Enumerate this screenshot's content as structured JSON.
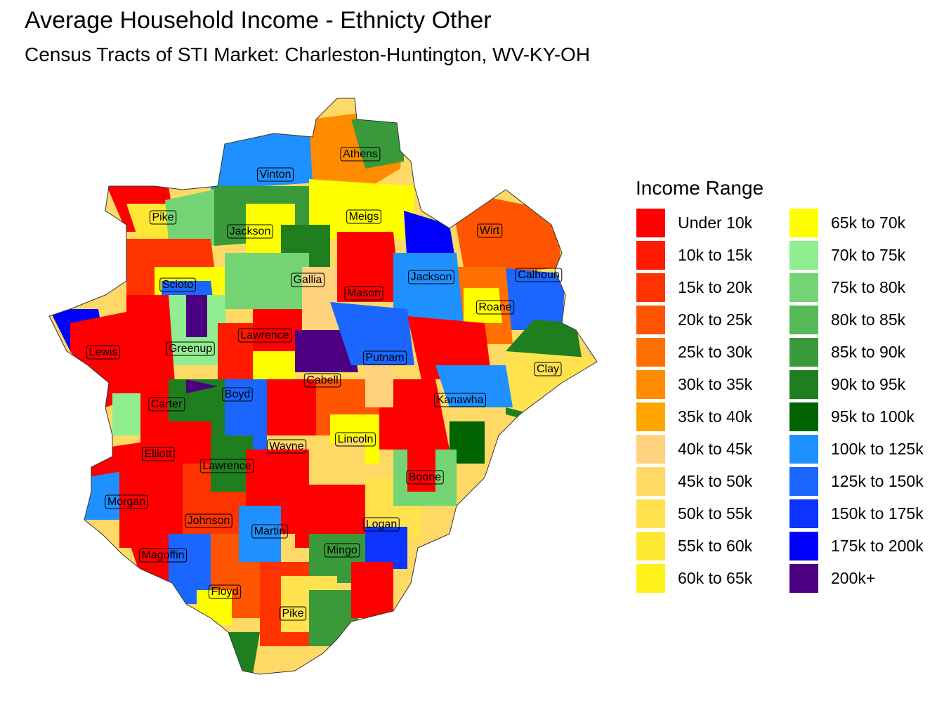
{
  "title": "Average Household Income - Ethnicty Other",
  "subtitle": "Census Tracts of STI Market: Charleston-Huntington, WV-KY-OH",
  "legend": {
    "title": "Income Range",
    "items": [
      {
        "label": "Under 10k",
        "color": "#FF0000"
      },
      {
        "label": "10k to 15k",
        "color": "#FF1A00"
      },
      {
        "label": "15k to 20k",
        "color": "#FF3300"
      },
      {
        "label": "20k to 25k",
        "color": "#FF5500"
      },
      {
        "label": "25k to 30k",
        "color": "#FF7000"
      },
      {
        "label": "30k to 35k",
        "color": "#FF8C00"
      },
      {
        "label": "35k to 40k",
        "color": "#FFA500"
      },
      {
        "label": "40k to 45k",
        "color": "#FFD280"
      },
      {
        "label": "45k to 50k",
        "color": "#FFD966"
      },
      {
        "label": "50k to 55k",
        "color": "#FFE24D"
      },
      {
        "label": "55k to 60k",
        "color": "#FFE833"
      },
      {
        "label": "60k to 65k",
        "color": "#FFF21A"
      },
      {
        "label": "65k to 70k",
        "color": "#FFFF00"
      },
      {
        "label": "70k to 75k",
        "color": "#90EE90"
      },
      {
        "label": "75k to 80k",
        "color": "#74D474"
      },
      {
        "label": "80k to 85k",
        "color": "#56B856"
      },
      {
        "label": "85k to 90k",
        "color": "#3A9A3A"
      },
      {
        "label": "90k to 95k",
        "color": "#1F7F1F"
      },
      {
        "label": "95k to 100k",
        "color": "#006400"
      },
      {
        "label": "100k to 125k",
        "color": "#1E90FF"
      },
      {
        "label": "125k to 150k",
        "color": "#1A66FF"
      },
      {
        "label": "150k to 175k",
        "color": "#0D33FF"
      },
      {
        "label": "175k to 200k",
        "color": "#0000FF"
      },
      {
        "label": "200k+",
        "color": "#4B0082"
      }
    ]
  },
  "counties": [
    "Athens",
    "Vinton",
    "Pike",
    "Jackson",
    "Meigs",
    "Wirt",
    "Scioto",
    "Gallia",
    "Mason",
    "Jackson",
    "Calhoun",
    "Roane",
    "Lawrence",
    "Lewis",
    "Greenup",
    "Putnam",
    "Clay",
    "Cabell",
    "Carter",
    "Boyd",
    "Kanawha",
    "Wayne",
    "Lincoln",
    "Elliott",
    "Lawrence",
    "Boone",
    "Morgan",
    "Johnson",
    "Logan",
    "Martin",
    "Mingo",
    "Magoffin",
    "Floyd",
    "Pike"
  ]
}
